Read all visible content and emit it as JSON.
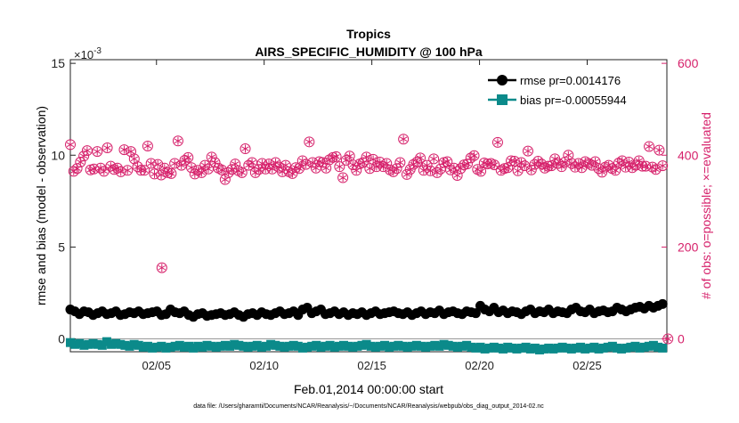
{
  "chart_data": {
    "type": "line",
    "title": "Tropics",
    "subtitle": "AIRS_SPECIFIC_HUMIDITY @ 100 hPa",
    "xlabel": "Feb.01,2014 00:00:00 start",
    "ylabel_left": "rmse and bias (model - observation)",
    "ylabel_right": "# of obs: o=possible; ×=evaluated",
    "left_exponent_label": "×10",
    "left_exponent_power": "-3",
    "footnote": "data file: /Users/gharamti/Documents/NCAR/Reanalysis/~/Documents/NCAR/Reanalysis/webpub/obs_diag_output_2014-02.nc",
    "xlim": [
      1,
      28.7
    ],
    "xticks": [
      5,
      10,
      15,
      20,
      25
    ],
    "xticklabels": [
      "02/05",
      "02/10",
      "02/15",
      "02/20",
      "02/25"
    ],
    "ylim_left": [
      -0.7,
      15.2
    ],
    "yticks_left": [
      0,
      5,
      10,
      15
    ],
    "yticklabels_left": [
      "0",
      "5",
      "10",
      "15"
    ],
    "ylim_right": [
      -28,
      608
    ],
    "yticks_right": [
      0,
      200,
      400,
      600
    ],
    "yticklabels_right": [
      "0",
      "200",
      "400",
      "600"
    ],
    "grid": false,
    "legend": {
      "position": "top-right",
      "entries": [
        "rmse pr=0.0014176",
        "bias pr=-0.00055944"
      ]
    },
    "colors": {
      "rmse": "#000000",
      "bias": "#0b8a8a",
      "obs": "#d6216b",
      "axis": "#222222",
      "zero_line": "#999999"
    },
    "x_start": 1,
    "x_step": 0.25,
    "series": [
      {
        "name": "rmse pr=0.0014176",
        "axis": "left",
        "marker": "circle",
        "values": [
          1.6,
          1.5,
          1.35,
          1.5,
          1.45,
          1.3,
          1.4,
          1.5,
          1.35,
          1.4,
          1.5,
          1.3,
          1.35,
          1.45,
          1.4,
          1.5,
          1.35,
          1.4,
          1.45,
          1.5,
          1.3,
          1.35,
          1.6,
          1.45,
          1.4,
          1.5,
          1.3,
          1.2,
          1.35,
          1.4,
          1.25,
          1.3,
          1.35,
          1.4,
          1.3,
          1.35,
          1.45,
          1.3,
          1.2,
          1.35,
          1.4,
          1.3,
          1.45,
          1.35,
          1.3,
          1.4,
          1.5,
          1.35,
          1.4,
          1.5,
          1.3,
          1.6,
          1.7,
          1.4,
          1.5,
          1.6,
          1.35,
          1.4,
          1.5,
          1.35,
          1.45,
          1.3,
          1.4,
          1.35,
          1.45,
          1.3,
          1.4,
          1.5,
          1.35,
          1.4,
          1.45,
          1.5,
          1.4,
          1.35,
          1.45,
          1.3,
          1.4,
          1.5,
          1.35,
          1.45,
          1.4,
          1.55,
          1.35,
          1.45,
          1.5,
          1.4,
          1.35,
          1.5,
          1.45,
          1.4,
          1.8,
          1.6,
          1.5,
          1.7,
          1.45,
          1.55,
          1.4,
          1.5,
          1.45,
          1.35,
          1.5,
          1.6,
          1.4,
          1.5,
          1.45,
          1.6,
          1.4,
          1.5,
          1.45,
          1.4,
          1.6,
          1.7,
          1.5,
          1.45,
          1.6,
          1.4,
          1.5,
          1.55,
          1.45,
          1.5,
          1.7,
          1.6,
          1.5,
          1.6,
          1.7,
          1.75,
          1.65,
          1.8,
          1.7,
          1.8,
          1.9
        ]
      },
      {
        "name": "bias pr=-0.00055944",
        "axis": "left",
        "marker": "square",
        "values": [
          -0.2,
          -0.3,
          -0.25,
          -0.35,
          -0.3,
          -0.25,
          -0.3,
          -0.35,
          -0.15,
          -0.3,
          -0.25,
          -0.3,
          -0.35,
          -0.4,
          -0.3,
          -0.35,
          -0.45,
          -0.4,
          -0.5,
          -0.45,
          -0.4,
          -0.5,
          -0.45,
          -0.4,
          -0.35,
          -0.45,
          -0.4,
          -0.5,
          -0.4,
          -0.45,
          -0.35,
          -0.4,
          -0.45,
          -0.4,
          -0.35,
          -0.4,
          -0.3,
          -0.35,
          -0.4,
          -0.45,
          -0.4,
          -0.35,
          -0.45,
          -0.4,
          -0.3,
          -0.35,
          -0.4,
          -0.45,
          -0.4,
          -0.35,
          -0.4,
          -0.5,
          -0.45,
          -0.4,
          -0.35,
          -0.45,
          -0.4,
          -0.35,
          -0.45,
          -0.4,
          -0.35,
          -0.4,
          -0.45,
          -0.4,
          -0.35,
          -0.3,
          -0.4,
          -0.45,
          -0.4,
          -0.35,
          -0.45,
          -0.4,
          -0.35,
          -0.4,
          -0.45,
          -0.4,
          -0.35,
          -0.4,
          -0.45,
          -0.4,
          -0.35,
          -0.4,
          -0.3,
          -0.35,
          -0.4,
          -0.45,
          -0.4,
          -0.35,
          -0.45,
          -0.5,
          -0.45,
          -0.55,
          -0.5,
          -0.45,
          -0.5,
          -0.55,
          -0.45,
          -0.5,
          -0.55,
          -0.5,
          -0.45,
          -0.55,
          -0.5,
          -0.6,
          -0.55,
          -0.5,
          -0.55,
          -0.5,
          -0.45,
          -0.5,
          -0.55,
          -0.5,
          -0.45,
          -0.55,
          -0.5,
          -0.45,
          -0.55,
          -0.5,
          -0.45,
          -0.4,
          -0.5,
          -0.55,
          -0.5,
          -0.45,
          -0.4,
          -0.5,
          -0.45,
          -0.4,
          -0.35,
          -0.45,
          -0.5
        ]
      },
      {
        "name": "# of obs",
        "axis": "right",
        "marker": "circle-asterisk",
        "values": [
          423,
          365,
          371,
          385,
          398,
          410,
          368,
          370,
          408,
          372,
          365,
          416,
          376,
          369,
          372,
          364,
          412,
          367,
          408,
          392,
          375,
          367,
          367,
          420,
          382,
          359,
          380,
          357,
          372,
          362,
          360,
          382,
          431,
          378,
          389,
          395,
          373,
          359,
          367,
          362,
          378,
          370,
          396,
          384,
          372,
          368,
          347,
          362,
          369,
          381,
          366,
          362,
          414,
          378,
          384,
          362,
          369,
          382,
          370,
          381,
          370,
          384,
          374,
          364,
          378,
          364,
          360,
          373,
          371,
          388,
          380,
          429,
          384,
          372,
          386,
          384,
          372,
          390,
          395,
          397,
          375,
          351,
          389,
          398,
          379,
          367,
          381,
          384,
          396,
          371,
          391,
          375,
          385,
          375,
          382,
          368,
          364,
          371,
          384,
          435,
          358,
          369,
          380,
          385,
          394,
          367,
          378,
          366,
          392,
          362,
          370,
          384,
          386,
          368,
          372,
          356,
          371,
          379,
          381,
          394,
          399,
          369,
          365,
          383,
          381,
          382,
          379,
          428,
          367,
          371,
          373,
          388,
          387,
          366,
          384,
          377,
          409,
          368,
          380,
          387,
          381,
          372,
          376,
          377,
          392,
          382,
          375,
          385,
          400,
          382,
          374,
          382,
          373,
          386,
          382,
          378,
          386,
          371,
          363,
          374,
          378,
          371,
          367,
          383,
          388,
          374,
          385,
          373,
          378,
          388,
          376,
          376,
          419,
          374,
          369,
          411,
          377
        ]
      }
    ],
    "obs_outlier": {
      "x": 5.25,
      "value": 155
    },
    "obs_last": {
      "x": 28.75,
      "value": 0
    }
  }
}
